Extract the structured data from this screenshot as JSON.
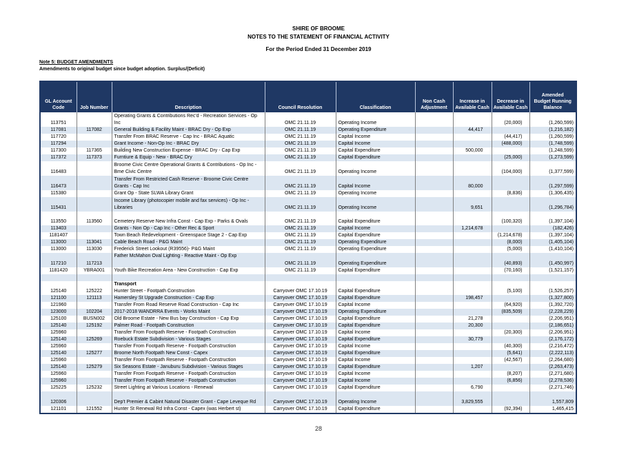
{
  "header": {
    "org": "SHIRE OF BROOME",
    "title": "NOTES TO THE STATEMENT OF FINANCIAL ACTIVITY",
    "period": "For the Period Ended 31 December 2019"
  },
  "note": {
    "heading": "Note 5: BUDGET AMENDMENTS",
    "subheading": "Amendments to original budget since budget adoption. Surplus/(Deficit)"
  },
  "footer": {
    "page_number": "28"
  },
  "colors": {
    "header_bg": "#1F3864",
    "band": "#DCE6F1",
    "border": "#7f7f7f"
  },
  "table": {
    "columns": [
      "GL Account\nCode",
      "Job Number",
      "Description",
      "Council Resolution",
      "Classification",
      "Non Cash\nAdjustment",
      "Increase in\nAvailable Cash",
      "Decrease in\nAvailable Cash",
      "Amended\nBudget Running\nBalance"
    ],
    "rows": [
      {
        "gl": "113751",
        "job": "",
        "desc": "Operating Grants & Contributions Rec'd - Recreation Services - Op Inc",
        "res": "OMC 21.11.19",
        "cls": "Operating Income",
        "non_cash": "",
        "inc": "",
        "dec": "(20,000)",
        "bal": "(1,260,599)",
        "shaded": false,
        "lines": 2,
        "type": "data"
      },
      {
        "gl": "117081",
        "job": "117082",
        "desc": "General Building & Facility Maint - BRAC Dry - Op Exp",
        "res": "OMC 21.11.19",
        "cls": "Operating Expenditure",
        "non_cash": "",
        "inc": "44,417",
        "dec": "",
        "bal": "(1,216,182)",
        "shaded": true,
        "lines": 1,
        "type": "data"
      },
      {
        "gl": "117720",
        "job": "",
        "desc": "Transfer From BRAC Reserve - Cap Inc - BRAC Aquatic",
        "res": "OMC 21.11.19",
        "cls": "Capital Income",
        "non_cash": "",
        "inc": "",
        "dec": "(44,417)",
        "bal": "(1,260,599)",
        "shaded": false,
        "lines": 1,
        "type": "data"
      },
      {
        "gl": "117294",
        "job": "",
        "desc": "Grant  Income - Non-Op Inc - BRAC Dry",
        "res": "OMC 21.11.19",
        "cls": "Capital Income",
        "non_cash": "",
        "inc": "",
        "dec": "(488,000)",
        "bal": "(1,748,599)",
        "shaded": true,
        "lines": 1,
        "type": "data"
      },
      {
        "gl": "117300",
        "job": "117365",
        "desc": "Building New Construction Expense - BRAC Dry - Cap Exp",
        "res": "OMC 21.11.19",
        "cls": "Capital Expenditure",
        "non_cash": "",
        "inc": "500,000",
        "dec": "",
        "bal": "(1,248,599)",
        "shaded": false,
        "lines": 1,
        "type": "data"
      },
      {
        "gl": "117372",
        "job": "117373",
        "desc": "Furntiure & Equip - New - BRAC Dry",
        "res": "OMC 21.11.19",
        "cls": "Capital Expenditure",
        "non_cash": "",
        "inc": "",
        "dec": "(25,000)",
        "bal": "(1,273,599)",
        "shaded": true,
        "lines": 1,
        "type": "data"
      },
      {
        "gl": "116483",
        "job": "",
        "desc": "Broome Civic Centre Operational Grants & Contributions - Op Inc - Bme Civic Centre",
        "res": "OMC 21.11.19",
        "cls": "Operating Income",
        "non_cash": "",
        "inc": "",
        "dec": "(104,000)",
        "bal": "(1,377,599)",
        "shaded": false,
        "lines": 2,
        "type": "data"
      },
      {
        "gl": "116473",
        "job": "",
        "desc": "Transfer From Restricted Cash Reserve - Broome Civic Centre Grants - Cap Inc",
        "res": "OMC 21.11.19",
        "cls": "Capital Income",
        "non_cash": "",
        "inc": "80,000",
        "dec": "",
        "bal": "(1,297,599)",
        "shaded": true,
        "lines": 2,
        "type": "data"
      },
      {
        "gl": "115380",
        "job": "",
        "desc": "Grant Op - State SLWA Library Grant",
        "res": "OMC 21.11.19",
        "cls": "Operating Income",
        "non_cash": "",
        "inc": "",
        "dec": "(8,836)",
        "bal": "(1,306,435)",
        "shaded": false,
        "lines": 1,
        "type": "data"
      },
      {
        "gl": "115431",
        "job": "",
        "desc": "Income Library (photocopier mobile and fax services) - Op Inc - Libraries",
        "res": "OMC 21.11.19",
        "cls": "Operating Income",
        "non_cash": "",
        "inc": "9,651",
        "dec": "",
        "bal": "(1,296,784)",
        "shaded": true,
        "lines": 2,
        "type": "data"
      },
      {
        "gl": "",
        "job": "",
        "desc": "",
        "res": "",
        "cls": "",
        "non_cash": "",
        "inc": "",
        "dec": "",
        "bal": "",
        "shaded": false,
        "lines": 1,
        "type": "blank"
      },
      {
        "gl": "113550",
        "job": "113560",
        "desc": "Cemetery Reserve New Infra Const - Cap Exp - Parks & Ovals",
        "res": "OMC 21.11.19",
        "cls": "Capital Expenditure",
        "non_cash": "",
        "inc": "",
        "dec": "(100,320)",
        "bal": "(1,397,104)",
        "shaded": false,
        "lines": 1,
        "type": "data"
      },
      {
        "gl": "113403",
        "job": "",
        "desc": "Grants -  Non Op - Cap Inc - Other Rec & Sport",
        "res": "OMC 21.11.19",
        "cls": "Capital Income",
        "non_cash": "",
        "inc": "1,214,678",
        "dec": "",
        "bal": "(182,426)",
        "shaded": true,
        "lines": 1,
        "type": "data"
      },
      {
        "gl": "1181407",
        "job": "",
        "desc": "Town Beach Redevelopment - Greenspace Stage 2 - Cap Exp",
        "res": "OMC 21.11.19",
        "cls": "Capital Expenditure",
        "non_cash": "",
        "inc": "",
        "dec": "(1,214,678)",
        "bal": "(1,397,104)",
        "shaded": false,
        "lines": 1,
        "type": "data"
      },
      {
        "gl": "113000",
        "job": "113041",
        "desc": "Cable Beach Road - P&G Maint",
        "res": "OMC 21.11.19",
        "cls": "Operating Expenditure",
        "non_cash": "",
        "inc": "",
        "dec": "(8,000)",
        "bal": "(1,405,104)",
        "shaded": true,
        "lines": 1,
        "type": "data"
      },
      {
        "gl": "113000",
        "job": "113030",
        "desc": "Frederick Street Lookout (R39556)- P&G Maint",
        "res": "OMC 21.11.19",
        "cls": "Operating Expenditure",
        "non_cash": "",
        "inc": "",
        "dec": "(5,000)",
        "bal": "(1,410,104)",
        "shaded": false,
        "lines": 1,
        "type": "data"
      },
      {
        "gl": "117210",
        "job": "117213",
        "desc": "Father McMahon Oval Lighting - Reactive Maint - Op Exp",
        "res": "OMC 21.11.19",
        "cls": "Operating Expenditure",
        "non_cash": "",
        "inc": "",
        "dec": "(40,893)",
        "bal": "(1,450,997)",
        "shaded": true,
        "lines": 2,
        "desc_top": true,
        "type": "data"
      },
      {
        "gl": "1181420",
        "job": "YBRA001",
        "desc": "Youth Bike Recreation Area - New Construction - Cap Exp",
        "res": "OMC 21.11.19",
        "cls": "Capital Expenditure",
        "non_cash": "",
        "inc": "",
        "dec": "(70,160)",
        "bal": "(1,521,157)",
        "shaded": false,
        "lines": 1,
        "type": "data"
      },
      {
        "gl": "",
        "job": "",
        "desc": "",
        "res": "",
        "cls": "",
        "non_cash": "",
        "inc": "",
        "dec": "",
        "bal": "",
        "shaded": true,
        "lines": 1,
        "type": "blank"
      },
      {
        "gl": "",
        "job": "",
        "desc": "Transport",
        "res": "",
        "cls": "",
        "non_cash": "",
        "inc": "",
        "dec": "",
        "bal": "",
        "shaded": false,
        "lines": 1,
        "type": "section"
      },
      {
        "gl": "125140",
        "job": "125222",
        "desc": "Hunter Street - Footpath Construction",
        "res": "Carryover OMC 17.10.19",
        "cls": "Capital Expenditure",
        "non_cash": "",
        "inc": "",
        "dec": "(5,100)",
        "bal": "(1,526,257)",
        "shaded": false,
        "lines": 1,
        "type": "data"
      },
      {
        "gl": "121100",
        "job": "121113",
        "desc": "Hamersley St Upgrade Construction - Cap Exp",
        "res": "Carryover OMC 17.10.19",
        "cls": "Capital Expenditure",
        "non_cash": "",
        "inc": "198,457",
        "dec": "",
        "bal": "(1,327,800)",
        "shaded": true,
        "lines": 1,
        "type": "data"
      },
      {
        "gl": "121960",
        "job": "",
        "desc": "Transfer From Road Reserve Road Construction - Cap Inc",
        "res": "Carryover OMC 17.10.19",
        "cls": "Capital Income",
        "non_cash": "",
        "inc": "",
        "dec": "(64,920)",
        "bal": "(1,392,720)",
        "shaded": false,
        "lines": 1,
        "type": "data"
      },
      {
        "gl": "123000",
        "job": "102204",
        "desc": "2017-2018 WANDRRA Events - Works Maint",
        "res": "Carryover OMC 17.10.19",
        "cls": "Operating Expenditure",
        "non_cash": "",
        "inc": "",
        "dec": "(835,509)",
        "bal": "(2,228,229)",
        "shaded": true,
        "lines": 1,
        "type": "data"
      },
      {
        "gl": "125100",
        "job": "BUSN002",
        "desc": "Old Broome Estate - New Bus bay Construction - Cap Exp",
        "res": "Carryover OMC 17.10.19",
        "cls": "Capital Expenditure",
        "non_cash": "",
        "inc": "21,278",
        "dec": "",
        "bal": "(2,206,951)",
        "shaded": false,
        "lines": 1,
        "type": "data"
      },
      {
        "gl": "125140",
        "job": "125192",
        "desc": "Palmer Road - Footpath Construction",
        "res": "Carryover OMC 17.10.19",
        "cls": "Capital Expenditure",
        "non_cash": "",
        "inc": "20,300",
        "dec": "",
        "bal": "(2,186,651)",
        "shaded": true,
        "lines": 1,
        "type": "data"
      },
      {
        "gl": "125960",
        "job": "",
        "desc": "Transfer From Footpath Reserve - Footpath Construction",
        "res": "Carryover OMC 17.10.19",
        "cls": "Capital Income",
        "non_cash": "",
        "inc": "",
        "dec": "(20,300)",
        "bal": "(2,206,951)",
        "shaded": false,
        "lines": 1,
        "type": "data"
      },
      {
        "gl": "125140",
        "job": "125269",
        "desc": "Roebuck Estate Subdivision - Various Stages",
        "res": "Carryover OMC 17.10.19",
        "cls": "Capital Expenditure",
        "non_cash": "",
        "inc": "30,779",
        "dec": "",
        "bal": "(2,176,172)",
        "shaded": true,
        "lines": 1,
        "type": "data"
      },
      {
        "gl": "125960",
        "job": "",
        "desc": "Transfer From Footpath Reserve - Footpath Construction",
        "res": "Carryover OMC 17.10.19",
        "cls": "Capital Income",
        "non_cash": "",
        "inc": "",
        "dec": "(40,300)",
        "bal": "(2,216,472)",
        "shaded": false,
        "lines": 1,
        "type": "data"
      },
      {
        "gl": "125140",
        "job": "125277",
        "desc": "Broome North Footpath New Const - Capex",
        "res": "Carryover OMC 17.10.19",
        "cls": "Capital Expenditure",
        "non_cash": "",
        "inc": "",
        "dec": "(5,641)",
        "bal": "(2,222,113)",
        "shaded": true,
        "lines": 1,
        "type": "data"
      },
      {
        "gl": "125960",
        "job": "",
        "desc": "Transfer From Footpath Reserve - Footpath Construction",
        "res": "Carryover OMC 17.10.19",
        "cls": "Capital Income",
        "non_cash": "",
        "inc": "",
        "dec": "(42,567)",
        "bal": "(2,264,680)",
        "shaded": false,
        "lines": 1,
        "type": "data"
      },
      {
        "gl": "125140",
        "job": "125279",
        "desc": "Six Seasons Estate - Januburu Subdivision - Various Stages",
        "res": "Carryover OMC 17.10.19",
        "cls": "Capital Expenditure",
        "non_cash": "",
        "inc": "1,207",
        "dec": "",
        "bal": "(2,263,473)",
        "shaded": true,
        "lines": 1,
        "type": "data"
      },
      {
        "gl": "125960",
        "job": "",
        "desc": "Transfer From Footpath Reserve - Footpath Construction",
        "res": "Carryover OMC 17.10.19",
        "cls": "Capital Income",
        "non_cash": "",
        "inc": "",
        "dec": "(8,207)",
        "bal": "(2,271,680)",
        "shaded": false,
        "lines": 1,
        "type": "data"
      },
      {
        "gl": "125960",
        "job": "",
        "desc": "Transfer From Footpath Reserve - Footpath Construction",
        "res": "Carryover OMC 17.10.19",
        "cls": "Capital Income",
        "non_cash": "",
        "inc": "",
        "dec": "(6,856)",
        "bal": "(2,278,536)",
        "shaded": true,
        "lines": 1,
        "type": "data"
      },
      {
        "gl": "125225",
        "job": "125232",
        "desc": "Street Lighting at Various Locations - Renewal",
        "res": "Carryover OMC 17.10.19",
        "cls": "Capital Expenditure",
        "non_cash": "",
        "inc": "6,790",
        "dec": "",
        "bal": "(2,271,746)",
        "shaded": false,
        "lines": 1,
        "type": "data"
      },
      {
        "gl": "120306",
        "job": "",
        "desc": "Dep't Premier  & Cabint  Natural Disaster Grant - Cape Leveque Rd",
        "res": "Carryover OMC 17.10.19",
        "cls": "Operating Income",
        "non_cash": "",
        "inc": "3,829,555",
        "dec": "",
        "bal": "1,557,809",
        "shaded": true,
        "lines": 2,
        "type": "data"
      },
      {
        "gl": "121101",
        "job": "121552",
        "desc": "Hunter St Renewal Rd Infra Const - Capex (was Herbert st)",
        "res": "Carryover OMC 17.10.19",
        "cls": "Capital Expenditure",
        "non_cash": "",
        "inc": "",
        "dec": "(92,394)",
        "bal": "1,465,415",
        "shaded": false,
        "lines": 1,
        "type": "data"
      }
    ]
  }
}
